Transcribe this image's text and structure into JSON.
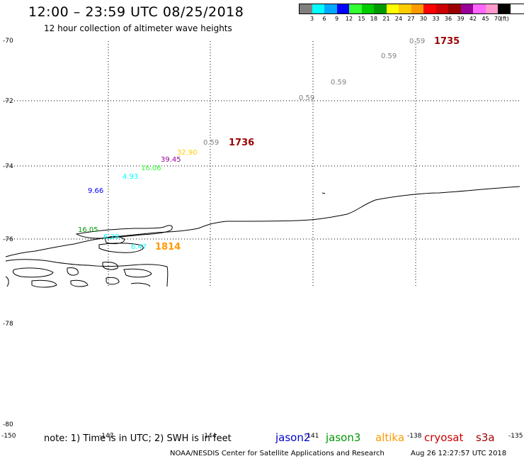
{
  "header": {
    "title": "12:00 – 23:59 UTC 08/25/2018",
    "subtitle": "12 hour collection of altimeter wave heights"
  },
  "legend": {
    "colors": [
      "#7f7f7f",
      "#00ffff",
      "#00a8ff",
      "#0000ff",
      "#33ff33",
      "#00cc00",
      "#009900",
      "#ffff00",
      "#ffcc00",
      "#ff9900",
      "#ff0000",
      "#cc0000",
      "#990000",
      "#990099",
      "#ff66ff",
      "#ff99cc",
      "#000000"
    ],
    "labels": [
      "3",
      "6",
      "9",
      "12",
      "15",
      "18",
      "21",
      "24",
      "27",
      "30",
      "33",
      "36",
      "39",
      "42",
      "45",
      "70",
      "(ft)"
    ]
  },
  "map": {
    "lat_labels": [
      "-70",
      "-72",
      "-74",
      "-76",
      "-78",
      "-80"
    ],
    "lon_labels": [
      "-150",
      "-147",
      "-144",
      "-141",
      "-138",
      "-135"
    ],
    "times": [
      {
        "text": "1735",
        "color": "#990000"
      },
      {
        "text": "1736",
        "color": "#990000"
      },
      {
        "text": "1814",
        "color": "#ff9900"
      }
    ],
    "wave_heights": [
      {
        "text": "0.59",
        "color": "#7f7f7f"
      },
      {
        "text": "0.59",
        "color": "#7f7f7f"
      },
      {
        "text": "0.59",
        "color": "#7f7f7f"
      },
      {
        "text": "0.59",
        "color": "#7f7f7f"
      },
      {
        "text": "0.59",
        "color": "#7f7f7f"
      },
      {
        "text": "32.90",
        "color": "#ffcc00"
      },
      {
        "text": "39.45",
        "color": "#990099"
      },
      {
        "text": "16.06",
        "color": "#33ff33"
      },
      {
        "text": "4.93",
        "color": "#00ffff"
      },
      {
        "text": "9.66",
        "color": "#0000ff"
      },
      {
        "text": "16.05",
        "color": "#009900"
      },
      {
        "text": "6.28",
        "color": "#00ffff"
      },
      {
        "text": "6.47",
        "color": "#00ffff"
      }
    ]
  },
  "footer": {
    "note": "note: 1) Time is in UTC; 2) SWH is in feet",
    "satellites": [
      {
        "name": "jason2",
        "color": "#0000cc"
      },
      {
        "name": "jason3",
        "color": "#009900"
      },
      {
        "name": "altika",
        "color": "#ff9900"
      },
      {
        "name": "cryosat",
        "color": "#cc0000"
      },
      {
        "name": "s3a",
        "color": "#990000"
      }
    ],
    "credit": "NOAA/NESDIS Center for Satellite Applications and Research",
    "timestamp": "Aug 26 12:27:57 UTC 2018"
  }
}
